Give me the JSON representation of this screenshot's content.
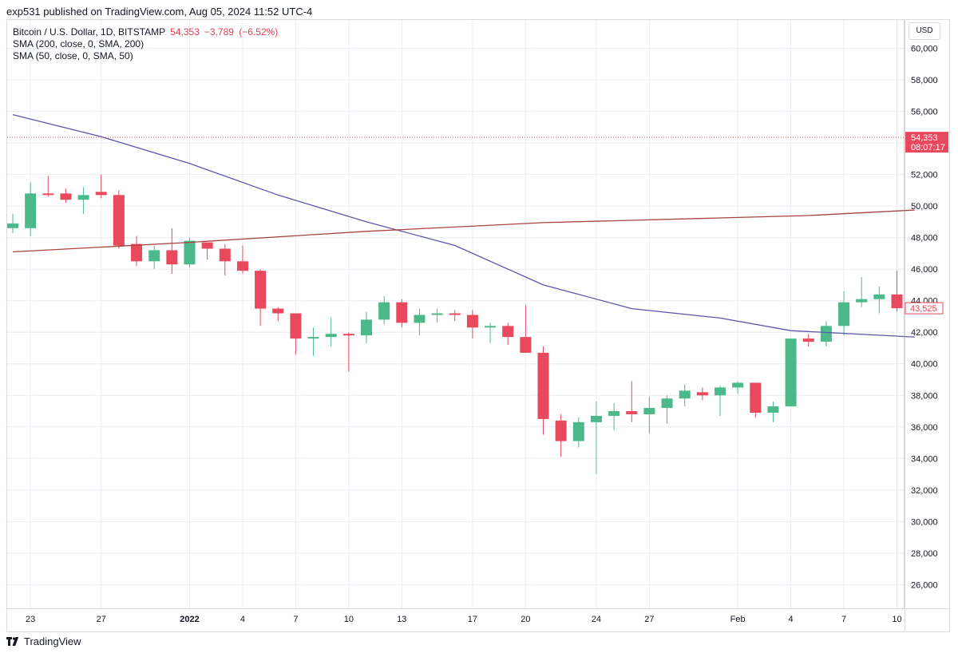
{
  "header": {
    "published": "exp531 published on TradingView.com, Aug 05, 2024 11:52 UTC-4"
  },
  "legend": {
    "symbol": "Bitcoin / U.S. Dollar, 1D, BITSTAMP",
    "last": "54,353",
    "change": "−3,789",
    "change_pct": "(−6.52%)",
    "sma200": "SMA (200, close, 0, SMA, 200)",
    "sma50": "SMA (50, close, 0, SMA, 50)"
  },
  "currency": "USD",
  "footer": {
    "brand": "TradingView",
    "logo_icon": "tradingview-logo-icon"
  },
  "colors": {
    "up": "#4cb98a",
    "down": "#e9495c",
    "sma50": "#5b54ad",
    "sma200": "#a84340",
    "grid": "#e9edf3"
  },
  "chart_data": {
    "type": "candlestick",
    "ylim": [
      24500,
      61800
    ],
    "y_ticks": [
      26000,
      28000,
      30000,
      32000,
      34000,
      36000,
      38000,
      40000,
      42000,
      44000,
      46000,
      48000,
      50000,
      52000,
      54000,
      56000,
      58000,
      60000
    ],
    "y_tick_labels": [
      "26,000",
      "28,000",
      "30,000",
      "32,000",
      "34,000",
      "36,000",
      "38,000",
      "40,000",
      "42,000",
      "44,000",
      "46,000",
      "48,000",
      "50,000",
      "52,000",
      "54,000",
      "56,000",
      "58,000",
      "60,000"
    ],
    "x_ticks": [
      {
        "idx": 1,
        "label": "23"
      },
      {
        "idx": 5,
        "label": "27"
      },
      {
        "idx": 10,
        "label": "2022",
        "bold": true
      },
      {
        "idx": 13,
        "label": "4"
      },
      {
        "idx": 16,
        "label": "7"
      },
      {
        "idx": 19,
        "label": "10"
      },
      {
        "idx": 22,
        "label": "13"
      },
      {
        "idx": 26,
        "label": "17"
      },
      {
        "idx": 29,
        "label": "20"
      },
      {
        "idx": 33,
        "label": "24"
      },
      {
        "idx": 36,
        "label": "27"
      },
      {
        "idx": 41,
        "label": "Feb"
      },
      {
        "idx": 44,
        "label": "4"
      },
      {
        "idx": 47,
        "label": "7"
      },
      {
        "idx": 50,
        "label": "10"
      }
    ],
    "candles": [
      {
        "o": 48600,
        "h": 49500,
        "l": 48300,
        "c": 48900
      },
      {
        "o": 48600,
        "h": 51500,
        "l": 48100,
        "c": 50800
      },
      {
        "o": 50800,
        "h": 51900,
        "l": 50600,
        "c": 50700
      },
      {
        "o": 50800,
        "h": 51100,
        "l": 50200,
        "c": 50400
      },
      {
        "o": 50400,
        "h": 51200,
        "l": 49500,
        "c": 50700
      },
      {
        "o": 50900,
        "h": 52000,
        "l": 50500,
        "c": 50700
      },
      {
        "o": 50700,
        "h": 51000,
        "l": 47300,
        "c": 47500
      },
      {
        "o": 47600,
        "h": 48100,
        "l": 46200,
        "c": 46500
      },
      {
        "o": 46500,
        "h": 47500,
        "l": 46000,
        "c": 47200
      },
      {
        "o": 47200,
        "h": 48600,
        "l": 45700,
        "c": 46300
      },
      {
        "o": 46300,
        "h": 48000,
        "l": 46100,
        "c": 47800
      },
      {
        "o": 47700,
        "h": 47700,
        "l": 46600,
        "c": 47300
      },
      {
        "o": 47300,
        "h": 47600,
        "l": 45600,
        "c": 46500
      },
      {
        "o": 46500,
        "h": 47500,
        "l": 45700,
        "c": 45900
      },
      {
        "o": 45900,
        "h": 46000,
        "l": 42400,
        "c": 43500
      },
      {
        "o": 43500,
        "h": 43600,
        "l": 42700,
        "c": 43200
      },
      {
        "o": 43200,
        "h": 43200,
        "l": 40600,
        "c": 41600
      },
      {
        "o": 41600,
        "h": 42300,
        "l": 40500,
        "c": 41700
      },
      {
        "o": 41700,
        "h": 42900,
        "l": 41100,
        "c": 41900
      },
      {
        "o": 41900,
        "h": 42000,
        "l": 39500,
        "c": 41800
      },
      {
        "o": 41800,
        "h": 43300,
        "l": 41300,
        "c": 42800
      },
      {
        "o": 42800,
        "h": 44300,
        "l": 42500,
        "c": 43900
      },
      {
        "o": 43900,
        "h": 44100,
        "l": 42300,
        "c": 42600
      },
      {
        "o": 42600,
        "h": 43500,
        "l": 41800,
        "c": 43100
      },
      {
        "o": 43100,
        "h": 43500,
        "l": 42600,
        "c": 43200
      },
      {
        "o": 43200,
        "h": 43400,
        "l": 42700,
        "c": 43100
      },
      {
        "o": 43100,
        "h": 43400,
        "l": 41600,
        "c": 42300
      },
      {
        "o": 42300,
        "h": 42600,
        "l": 41300,
        "c": 42400
      },
      {
        "o": 42400,
        "h": 42600,
        "l": 41200,
        "c": 41700
      },
      {
        "o": 41700,
        "h": 43700,
        "l": 40700,
        "c": 40700
      },
      {
        "o": 40700,
        "h": 41100,
        "l": 35500,
        "c": 36500
      },
      {
        "o": 36400,
        "h": 36800,
        "l": 34100,
        "c": 35100
      },
      {
        "o": 35100,
        "h": 36600,
        "l": 34700,
        "c": 36300
      },
      {
        "o": 36300,
        "h": 37600,
        "l": 33000,
        "c": 36700
      },
      {
        "o": 36700,
        "h": 37500,
        "l": 35800,
        "c": 37000
      },
      {
        "o": 37000,
        "h": 38900,
        "l": 36300,
        "c": 36800
      },
      {
        "o": 36800,
        "h": 37900,
        "l": 35600,
        "c": 37200
      },
      {
        "o": 37200,
        "h": 38000,
        "l": 36200,
        "c": 37800
      },
      {
        "o": 37800,
        "h": 38700,
        "l": 37300,
        "c": 38300
      },
      {
        "o": 38200,
        "h": 38500,
        "l": 37700,
        "c": 38000
      },
      {
        "o": 38000,
        "h": 38600,
        "l": 36700,
        "c": 38500
      },
      {
        "o": 38500,
        "h": 38900,
        "l": 38100,
        "c": 38800
      },
      {
        "o": 38800,
        "h": 38800,
        "l": 36600,
        "c": 36900
      },
      {
        "o": 36900,
        "h": 37600,
        "l": 36300,
        "c": 37300
      },
      {
        "o": 37300,
        "h": 41600,
        "l": 37300,
        "c": 41600
      },
      {
        "o": 41600,
        "h": 41900,
        "l": 41100,
        "c": 41400
      },
      {
        "o": 41400,
        "h": 42700,
        "l": 41100,
        "c": 42400
      },
      {
        "o": 42400,
        "h": 44600,
        "l": 41800,
        "c": 43900
      },
      {
        "o": 43900,
        "h": 45500,
        "l": 43600,
        "c": 44100
      },
      {
        "o": 44100,
        "h": 44900,
        "l": 43200,
        "c": 44400
      },
      {
        "o": 44400,
        "h": 45900,
        "l": 43300,
        "c": 43525
      }
    ],
    "sma50": [
      [
        0,
        55800
      ],
      [
        5,
        54400
      ],
      [
        10,
        52700
      ],
      [
        15,
        50700
      ],
      [
        20,
        49000
      ],
      [
        25,
        47500
      ],
      [
        30,
        45000
      ],
      [
        35,
        43500
      ],
      [
        40,
        42900
      ],
      [
        44,
        42100
      ],
      [
        51,
        41700
      ]
    ],
    "sma200": [
      [
        0,
        47100
      ],
      [
        10,
        47700
      ],
      [
        20,
        48400
      ],
      [
        30,
        48950
      ],
      [
        40,
        49250
      ],
      [
        45,
        49400
      ],
      [
        51,
        49750
      ]
    ],
    "last_price": {
      "value": 54353,
      "label": "54,353",
      "countdown": "08:07:17"
    },
    "close_price": {
      "value": 43525,
      "label": "43,525"
    }
  }
}
